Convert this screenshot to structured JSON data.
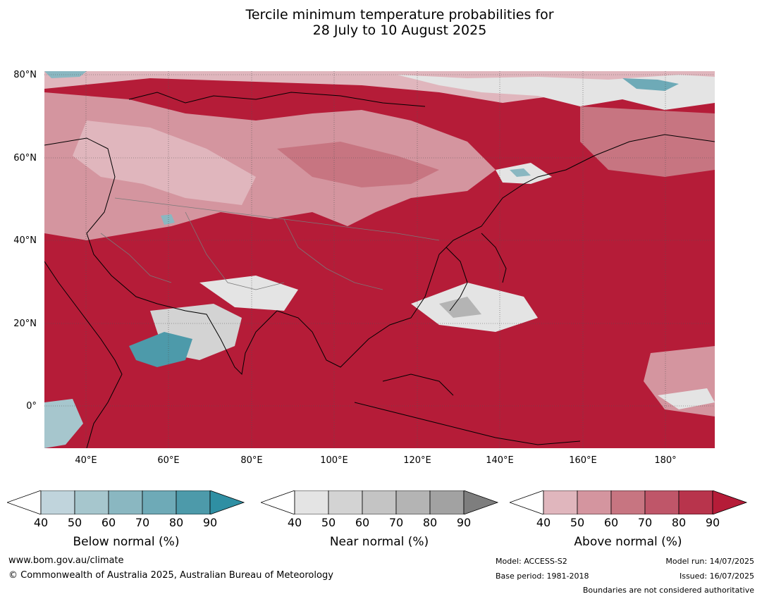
{
  "title": {
    "line1": "Tercile minimum temperature probabilities for",
    "line2": "28 July to 10 August 2025"
  },
  "map": {
    "lat_labels": [
      "80°N",
      "60°N",
      "40°N",
      "20°N",
      "0°"
    ],
    "lon_labels": [
      "40°E",
      "60°E",
      "80°E",
      "100°E",
      "120°E",
      "140°E",
      "160°E",
      "180°"
    ],
    "dominant_fill": "#b51c38"
  },
  "colorbars": [
    {
      "label": "Below normal (%)",
      "ticks": [
        "40",
        "50",
        "60",
        "70",
        "80",
        "90"
      ],
      "colors": [
        "#ffffff",
        "#c0d4dc",
        "#a6c6cd",
        "#8ab7c1",
        "#6eaab7",
        "#4d9aaa",
        "#2f8fa3"
      ]
    },
    {
      "label": "Near normal (%)",
      "ticks": [
        "40",
        "50",
        "60",
        "70",
        "80",
        "90"
      ],
      "colors": [
        "#ffffff",
        "#e4e4e4",
        "#d3d3d3",
        "#c4c4c4",
        "#b4b4b4",
        "#a2a2a2",
        "#7e7e7e"
      ]
    },
    {
      "label": "Above normal (%)",
      "ticks": [
        "40",
        "50",
        "60",
        "70",
        "80",
        "90"
      ],
      "colors": [
        "#ffffff",
        "#e0b6bd",
        "#d4959f",
        "#c77581",
        "#bf5669",
        "#b8344c",
        "#b51c38"
      ]
    }
  ],
  "footer": {
    "website": "www.bom.gov.au/climate",
    "copyright": "© Commonwealth of Australia 2025, Australian Bureau of Meteorology",
    "model": "Model: ACCESS-S2",
    "base_period": "Base period: 1981-2018",
    "model_run": "Model run: 14/07/2025",
    "issued": "Issued: 16/07/2025",
    "disclaimer": "Boundaries are not considered authoritative"
  }
}
